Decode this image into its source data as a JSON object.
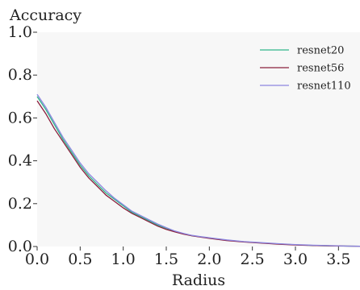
{
  "chart_data": {
    "type": "line",
    "title": "",
    "ylabel": "Accuracy",
    "xlabel": "Radius",
    "xlim": [
      0,
      3.75
    ],
    "ylim": [
      0,
      1.0
    ],
    "x_ticks": [
      0.0,
      0.5,
      1.0,
      1.5,
      2.0,
      2.5,
      3.0,
      3.5
    ],
    "x_tick_labels": [
      "0.0",
      "0.5",
      "1.0",
      "1.5",
      "2.0",
      "2.5",
      "3.0",
      "3.5"
    ],
    "y_ticks": [
      0.0,
      0.2,
      0.4,
      0.6,
      0.8,
      1.0
    ],
    "y_tick_labels": [
      "0.0",
      "0.2",
      "0.4",
      "0.6",
      "0.8",
      "1.0"
    ],
    "grid": false,
    "legend_position": "top-right",
    "background": "#f7f7f7",
    "series": [
      {
        "name": "resnet20",
        "color": "#2fb68a",
        "x": [
          0.0,
          0.1,
          0.2,
          0.3,
          0.4,
          0.5,
          0.6,
          0.7,
          0.8,
          0.9,
          1.0,
          1.1,
          1.2,
          1.3,
          1.4,
          1.5,
          1.6,
          1.7,
          1.8,
          1.9,
          2.0,
          2.2,
          2.4,
          2.6,
          2.8,
          3.0,
          3.2,
          3.4,
          3.6,
          3.75
        ],
        "values": [
          0.7,
          0.64,
          0.57,
          0.5,
          0.44,
          0.38,
          0.33,
          0.29,
          0.25,
          0.22,
          0.19,
          0.16,
          0.14,
          0.12,
          0.1,
          0.085,
          0.07,
          0.06,
          0.05,
          0.045,
          0.04,
          0.03,
          0.022,
          0.017,
          0.012,
          0.008,
          0.005,
          0.003,
          0.002,
          0.001
        ]
      },
      {
        "name": "resnet56",
        "color": "#8a1f3d",
        "x": [
          0.0,
          0.1,
          0.2,
          0.3,
          0.4,
          0.5,
          0.6,
          0.7,
          0.8,
          0.9,
          1.0,
          1.1,
          1.2,
          1.3,
          1.4,
          1.5,
          1.6,
          1.7,
          1.8,
          1.9,
          2.0,
          2.2,
          2.4,
          2.6,
          2.8,
          3.0,
          3.2,
          3.4,
          3.6,
          3.75
        ],
        "values": [
          0.68,
          0.62,
          0.55,
          0.49,
          0.43,
          0.37,
          0.32,
          0.28,
          0.24,
          0.21,
          0.18,
          0.155,
          0.135,
          0.115,
          0.095,
          0.08,
          0.068,
          0.058,
          0.05,
          0.044,
          0.038,
          0.028,
          0.021,
          0.016,
          0.011,
          0.007,
          0.005,
          0.003,
          0.002,
          0.001
        ]
      },
      {
        "name": "resnet110",
        "color": "#8d86e0",
        "x": [
          0.0,
          0.1,
          0.2,
          0.3,
          0.4,
          0.5,
          0.6,
          0.7,
          0.8,
          0.9,
          1.0,
          1.1,
          1.2,
          1.3,
          1.4,
          1.5,
          1.6,
          1.7,
          1.8,
          1.9,
          2.0,
          2.2,
          2.4,
          2.6,
          2.8,
          3.0,
          3.2,
          3.4,
          3.6,
          3.75
        ],
        "values": [
          0.71,
          0.65,
          0.58,
          0.51,
          0.45,
          0.39,
          0.34,
          0.3,
          0.26,
          0.225,
          0.195,
          0.165,
          0.145,
          0.125,
          0.105,
          0.088,
          0.072,
          0.061,
          0.052,
          0.046,
          0.041,
          0.031,
          0.023,
          0.018,
          0.013,
          0.009,
          0.006,
          0.004,
          0.002,
          0.001
        ]
      }
    ]
  }
}
